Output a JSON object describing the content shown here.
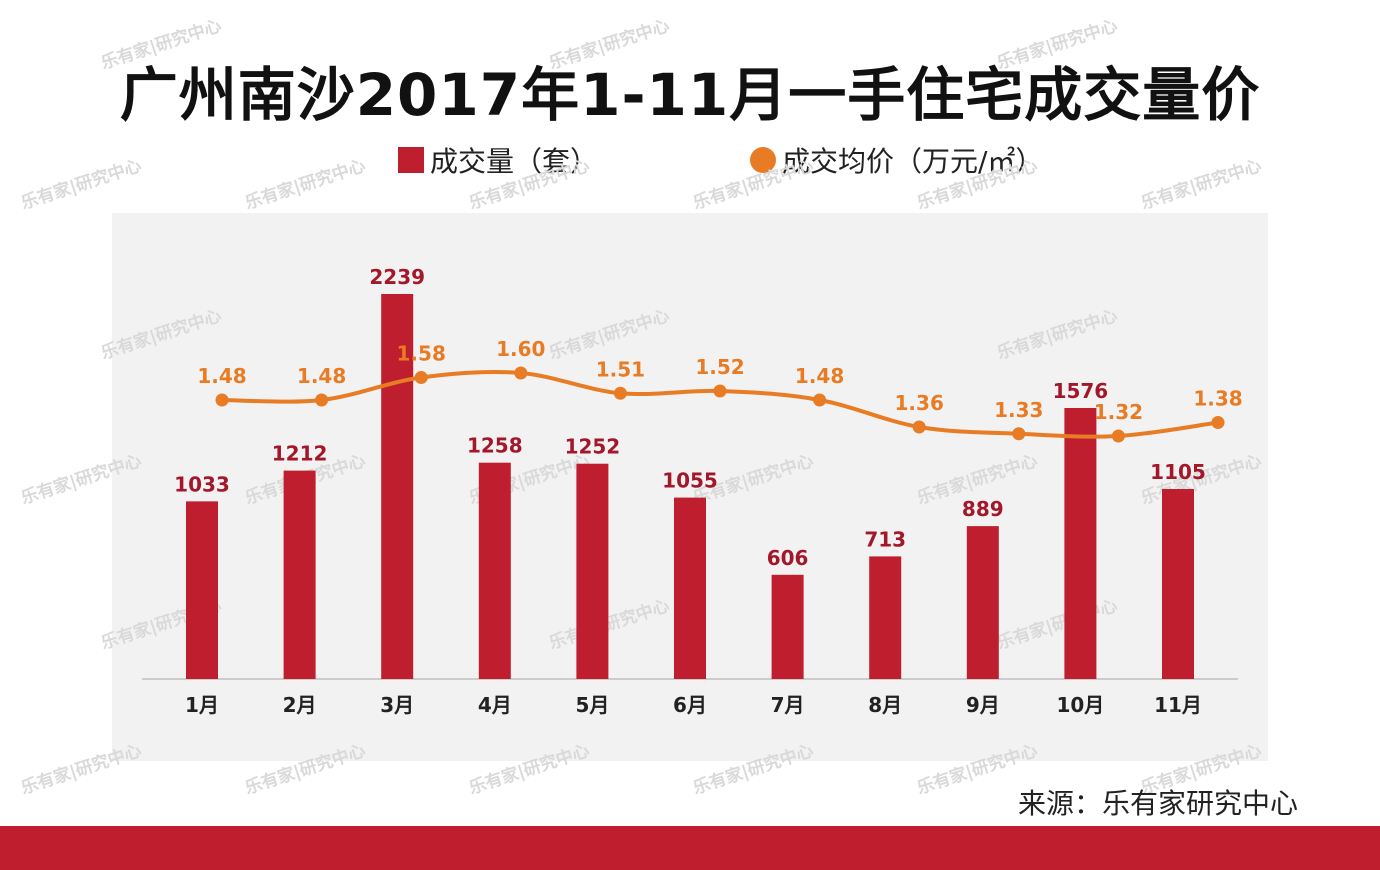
{
  "title": "广州南沙2017年1-11月一手住宅成交量价",
  "legend": {
    "bar_label": "成交量（套）",
    "line_label": "成交均价（万元/㎡）"
  },
  "source": "来源：乐有家研究中心",
  "watermark": "乐有家|研究中心",
  "colors": {
    "bar": "#be1e2d",
    "line": "#e87c24",
    "bar_label": "#a3172a",
    "line_label": "#e87c24",
    "footer": "#be1e2d"
  },
  "chart_data": {
    "type": "bar",
    "categories": [
      "1月",
      "2月",
      "3月",
      "4月",
      "5月",
      "6月",
      "7月",
      "8月",
      "9月",
      "10月",
      "11月"
    ],
    "series": [
      {
        "name": "成交量（套）",
        "type": "bar",
        "axis": "left",
        "values": [
          1033,
          1212,
          2239,
          1258,
          1252,
          1055,
          606,
          713,
          889,
          1576,
          1105
        ]
      },
      {
        "name": "成交均价（万元/㎡）",
        "type": "line",
        "axis": "right",
        "values": [
          1.48,
          1.48,
          1.58,
          1.6,
          1.51,
          1.52,
          1.48,
          1.36,
          1.33,
          1.32,
          1.38
        ]
      }
    ],
    "ylim_left": [
      0,
      2239
    ],
    "ylim_right": [
      1.0,
      1.6
    ],
    "grid": false,
    "legend_position": "top"
  }
}
